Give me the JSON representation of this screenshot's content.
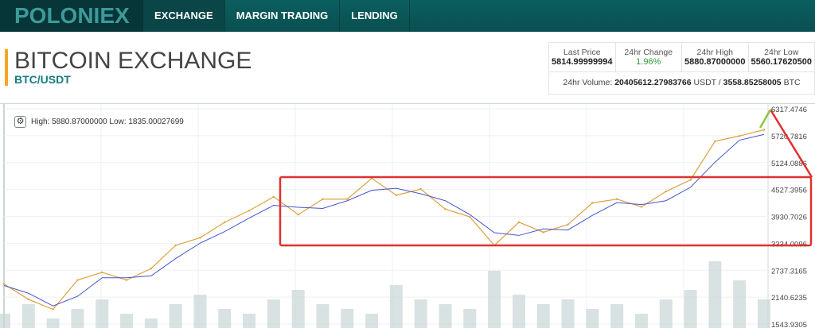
{
  "nav": {
    "logo": "POLONIEX",
    "tabs": [
      "EXCHANGE",
      "MARGIN TRADING",
      "LENDING"
    ]
  },
  "header": {
    "title": "BITCOIN EXCHANGE",
    "pair": "BTC/USDT"
  },
  "stats": {
    "last_price_label": "Last Price",
    "last_price": "5814.99999994",
    "change_label": "24hr Change",
    "change": "1.96%",
    "high_label": "24hr High",
    "high": "5880.87000000",
    "low_label": "24hr Low",
    "low": "5560.17620500",
    "volume_label": "24hr Volume:",
    "volume_usdt": "20405612.27983766",
    "usdt": "USDT /",
    "volume_btc": "3558.85258005",
    "btc": "BTC"
  },
  "chart_info": "High: 5880.87000000  Low: 1835.00027699",
  "colors": {
    "accent": "#167c80",
    "price": "#e0a040",
    "ma": "#4455cc",
    "annotation": "#e03030",
    "arrow": "#8cc63f"
  },
  "chart_data": {
    "type": "line",
    "ylim": [
      1543.9305,
      6317.4746
    ],
    "yticks": [
      "6317.4746",
      "5720.7816",
      "5124.0886",
      "4527.3956",
      "3930.7026",
      "3334.0096",
      "2737.3165",
      "2140.6235",
      "1543.9305"
    ],
    "series": [
      {
        "name": "price",
        "values": [
          2433,
          2091,
          1869,
          2519,
          2690,
          2519,
          2775,
          3288,
          3459,
          3801,
          4058,
          4365,
          3972,
          4314,
          4314,
          4776,
          4400,
          4536,
          4092,
          3921,
          3288,
          3801,
          3579,
          3750,
          4229,
          4314,
          4143,
          4485,
          4741,
          5597,
          5716,
          5853
        ]
      }
    ],
    "volume": [
      3,
      5,
      2,
      4,
      6,
      3,
      2,
      5,
      7,
      4,
      3,
      6,
      8,
      5,
      4,
      3,
      9,
      6,
      5,
      4,
      12,
      7,
      5,
      6,
      4,
      5,
      3,
      6,
      8,
      14,
      10,
      6
    ]
  }
}
